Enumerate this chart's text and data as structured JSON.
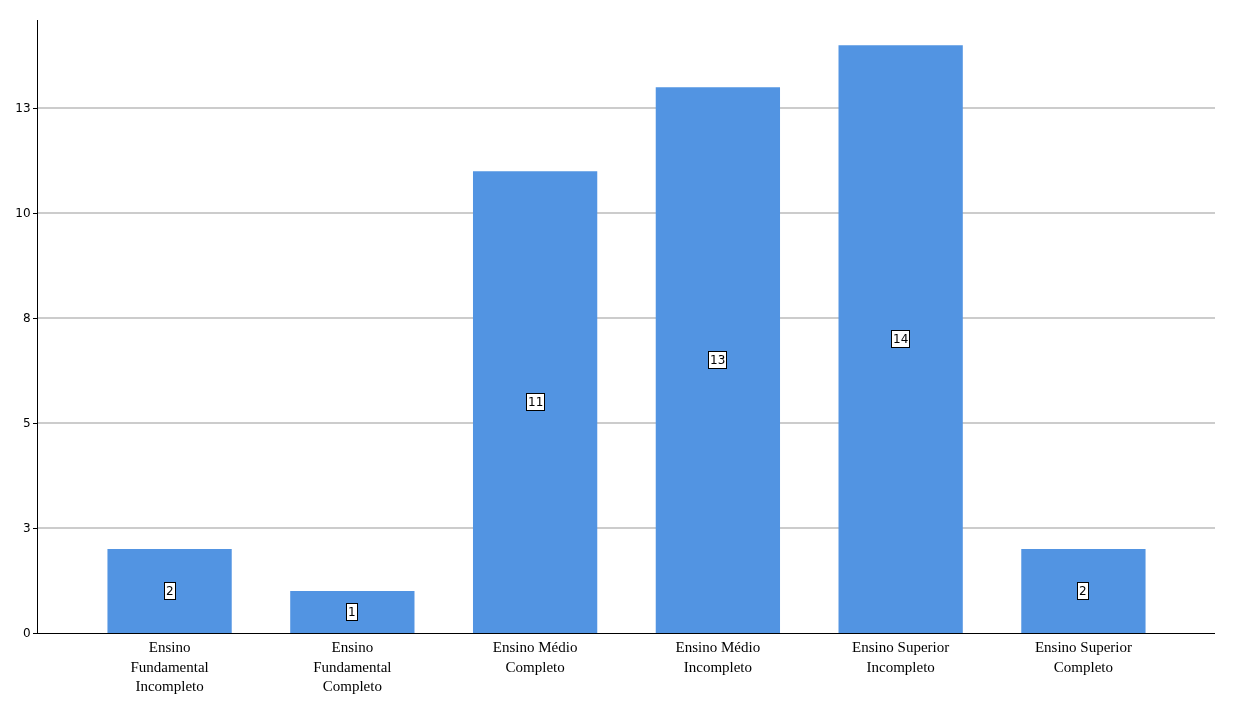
{
  "chart_data": {
    "type": "bar",
    "categories": [
      "Ensino Fundamental Incompleto",
      "Ensino Fundamental Completo",
      "Ensino Médio Completo",
      "Ensino Médio Incompleto",
      "Ensino Superior Incompleto",
      "Ensino Superior Completo"
    ],
    "values": [
      2,
      1,
      11,
      13,
      14,
      2
    ],
    "color": "#5294e2",
    "ylim": [
      0,
      14.6
    ],
    "yticks": [
      {
        "value": 0,
        "label": "0"
      },
      {
        "value": 2.5,
        "label": "3"
      },
      {
        "value": 5,
        "label": "5"
      },
      {
        "value": 7.5,
        "label": "8"
      },
      {
        "value": 10,
        "label": "10"
      },
      {
        "value": 12.5,
        "label": "13"
      }
    ],
    "grid": "y",
    "data_labels": true
  }
}
